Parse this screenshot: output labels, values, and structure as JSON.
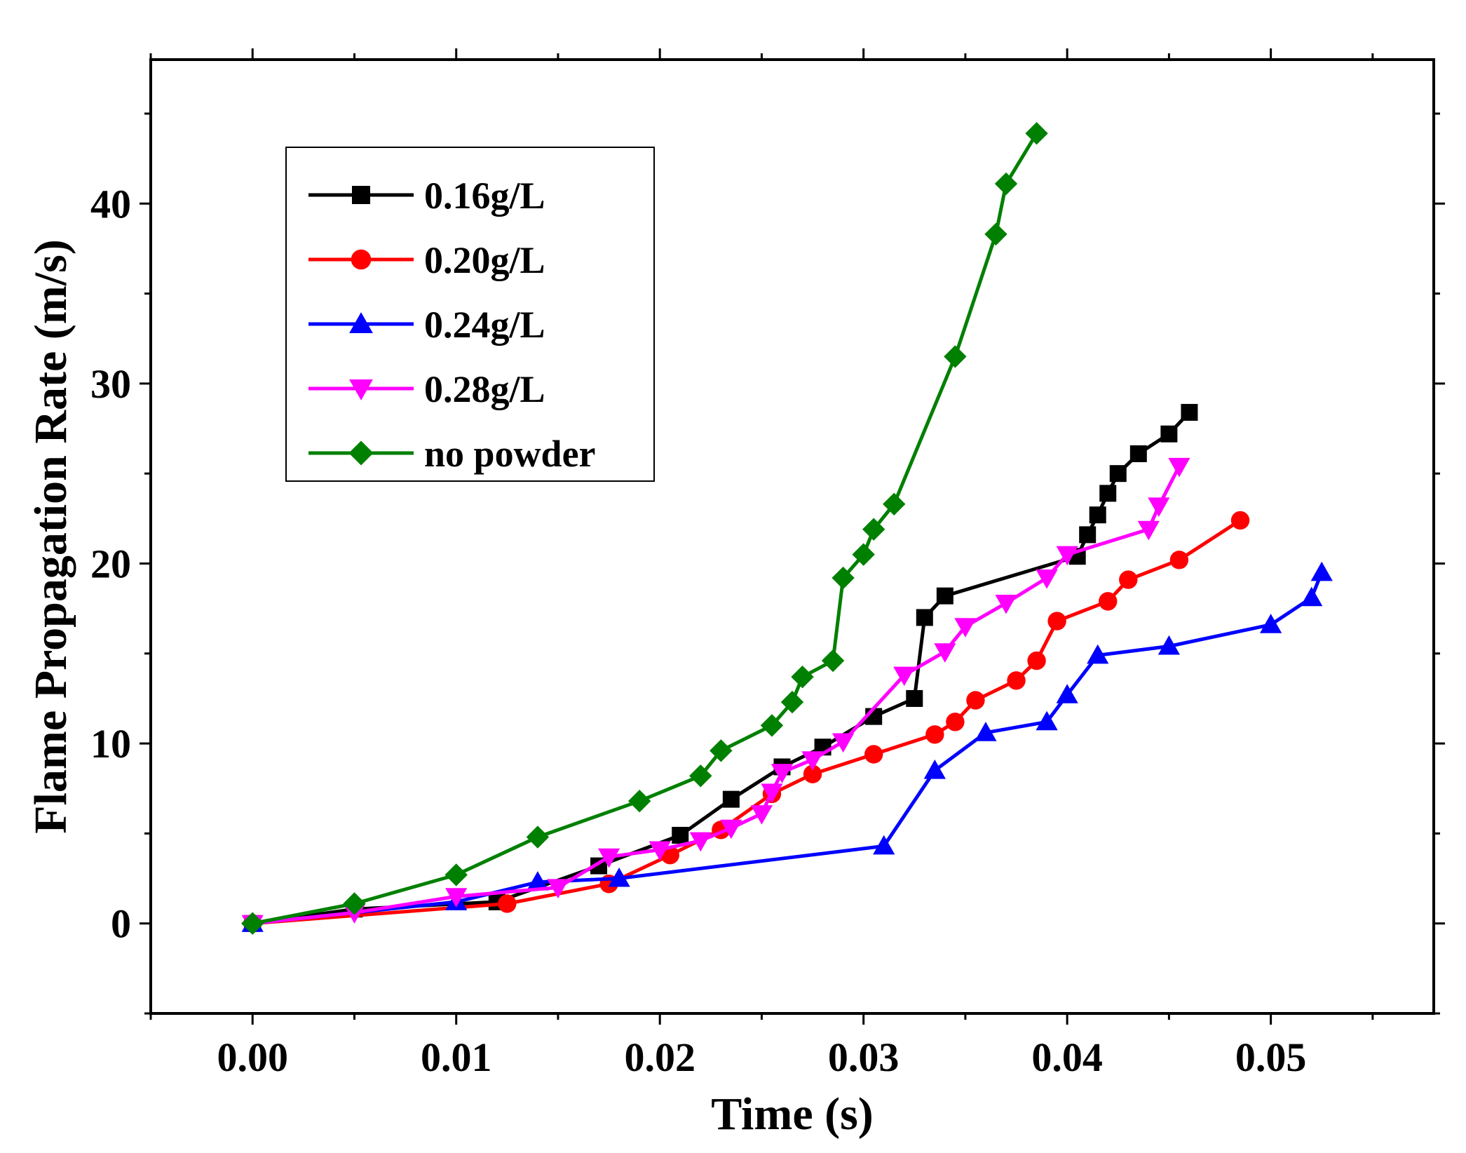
{
  "chart_data": {
    "type": "line",
    "title": "",
    "xlabel": "Time (s)",
    "ylabel": "Flame Propagation Rate  (m/s)",
    "xlim": [
      -0.005,
      0.058
    ],
    "ylim": [
      -5,
      48
    ],
    "xticks": [
      0.0,
      0.01,
      0.02,
      0.03,
      0.04,
      0.05
    ],
    "xtick_labels": [
      "0.00",
      "0.01",
      "0.02",
      "0.03",
      "0.04",
      "0.05"
    ],
    "yticks": [
      0,
      10,
      20,
      30,
      40
    ],
    "ytick_labels": [
      "0",
      "10",
      "20",
      "30",
      "40"
    ],
    "grid": false,
    "legend_position": "top-left",
    "series": [
      {
        "name": "0.16g/L",
        "color": "#000000",
        "marker": "square",
        "x": [
          0.0,
          0.005,
          0.012,
          0.017,
          0.021,
          0.0235,
          0.026,
          0.028,
          0.0305,
          0.0325,
          0.033,
          0.034,
          0.0405,
          0.041,
          0.0415,
          0.042,
          0.0425,
          0.0435,
          0.045,
          0.046
        ],
        "y": [
          0.0,
          0.8,
          1.2,
          3.2,
          4.9,
          6.9,
          8.7,
          9.8,
          11.5,
          12.5,
          17.0,
          18.2,
          20.4,
          21.6,
          22.7,
          23.9,
          25.0,
          26.1,
          27.2,
          28.4
        ]
      },
      {
        "name": "0.20g/L",
        "color": "#ff0000",
        "marker": "circle",
        "x": [
          0.0,
          0.0125,
          0.0175,
          0.0205,
          0.023,
          0.0255,
          0.0275,
          0.0305,
          0.0335,
          0.0345,
          0.0355,
          0.0375,
          0.0385,
          0.0395,
          0.042,
          0.043,
          0.0455,
          0.0485
        ],
        "y": [
          0.0,
          1.1,
          2.2,
          3.8,
          5.2,
          7.2,
          8.3,
          9.4,
          10.5,
          11.2,
          12.4,
          13.5,
          14.6,
          16.8,
          17.9,
          19.1,
          20.2,
          22.4
        ]
      },
      {
        "name": "0.24g/L",
        "color": "#0000ff",
        "marker": "triangle-up",
        "x": [
          0.0,
          0.01,
          0.014,
          0.018,
          0.031,
          0.0335,
          0.036,
          0.039,
          0.04,
          0.0415,
          0.045,
          0.05,
          0.052,
          0.0525
        ],
        "y": [
          0.0,
          1.2,
          2.3,
          2.5,
          4.3,
          8.5,
          10.6,
          11.2,
          12.7,
          14.9,
          15.4,
          16.6,
          18.1,
          19.5
        ]
      },
      {
        "name": "0.28g/L",
        "color": "#ff00ff",
        "marker": "triangle-down",
        "x": [
          0.0,
          0.005,
          0.01,
          0.015,
          0.0175,
          0.02,
          0.022,
          0.0235,
          0.025,
          0.0255,
          0.026,
          0.0275,
          0.029,
          0.032,
          0.034,
          0.035,
          0.037,
          0.039,
          0.04,
          0.044,
          0.0445,
          0.0455
        ],
        "y": [
          0.0,
          0.6,
          1.5,
          2.0,
          3.7,
          4.1,
          4.6,
          5.3,
          6.1,
          7.3,
          8.4,
          9.1,
          10.1,
          13.8,
          15.1,
          16.5,
          17.8,
          19.2,
          20.5,
          21.9,
          23.2,
          25.4
        ]
      },
      {
        "name": "no powder",
        "color": "#008000",
        "marker": "diamond",
        "x": [
          0.0,
          0.005,
          0.01,
          0.014,
          0.019,
          0.022,
          0.023,
          0.0255,
          0.0265,
          0.027,
          0.0285,
          0.029,
          0.03,
          0.0305,
          0.0315,
          0.0345,
          0.0365,
          0.037,
          0.0385
        ],
        "y": [
          0.0,
          1.1,
          2.7,
          4.8,
          6.8,
          8.2,
          9.6,
          11.0,
          12.3,
          13.7,
          14.6,
          19.2,
          20.5,
          21.9,
          23.3,
          31.5,
          38.3,
          41.1,
          43.9
        ]
      }
    ]
  }
}
